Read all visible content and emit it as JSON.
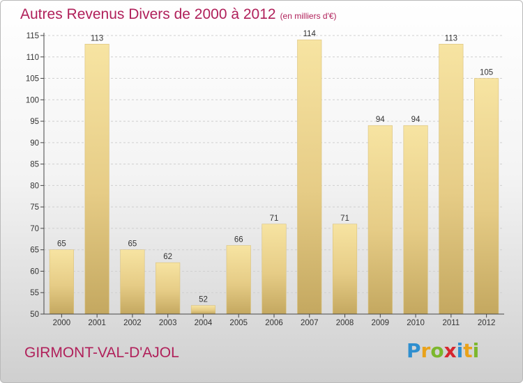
{
  "title": {
    "main": "Autres Revenus Divers de 2000 à 2012",
    "unit": "(en milliers d'€)"
  },
  "commune": "GIRMONT-VAL-D'AJOL",
  "logo": {
    "letters": [
      "P",
      "r",
      "o",
      "x",
      "i",
      "t",
      "i"
    ],
    "colors": [
      "#2f8fcf",
      "#e9a21a",
      "#7cb72d",
      "#d6262f",
      "#2f8fcf",
      "#e9a21a",
      "#7cb72d"
    ]
  },
  "colors": {
    "title": "#b0205a",
    "bar_light": "#f6e3a0",
    "bar_dark": "#c7ab63",
    "grid": "#cfcfcf"
  },
  "chart_data": {
    "type": "bar",
    "categories": [
      "2000",
      "2001",
      "2002",
      "2003",
      "2004",
      "2005",
      "2006",
      "2007",
      "2008",
      "2009",
      "2010",
      "2011",
      "2012"
    ],
    "values": [
      65,
      113,
      65,
      62,
      52,
      66,
      71,
      114,
      71,
      94,
      94,
      113,
      105
    ],
    "ylim": [
      50,
      115
    ],
    "yticks": [
      50,
      55,
      60,
      65,
      70,
      75,
      80,
      85,
      90,
      95,
      100,
      105,
      110,
      115
    ],
    "grid": "horizontal dashed",
    "xlabel": "",
    "ylabel": ""
  }
}
